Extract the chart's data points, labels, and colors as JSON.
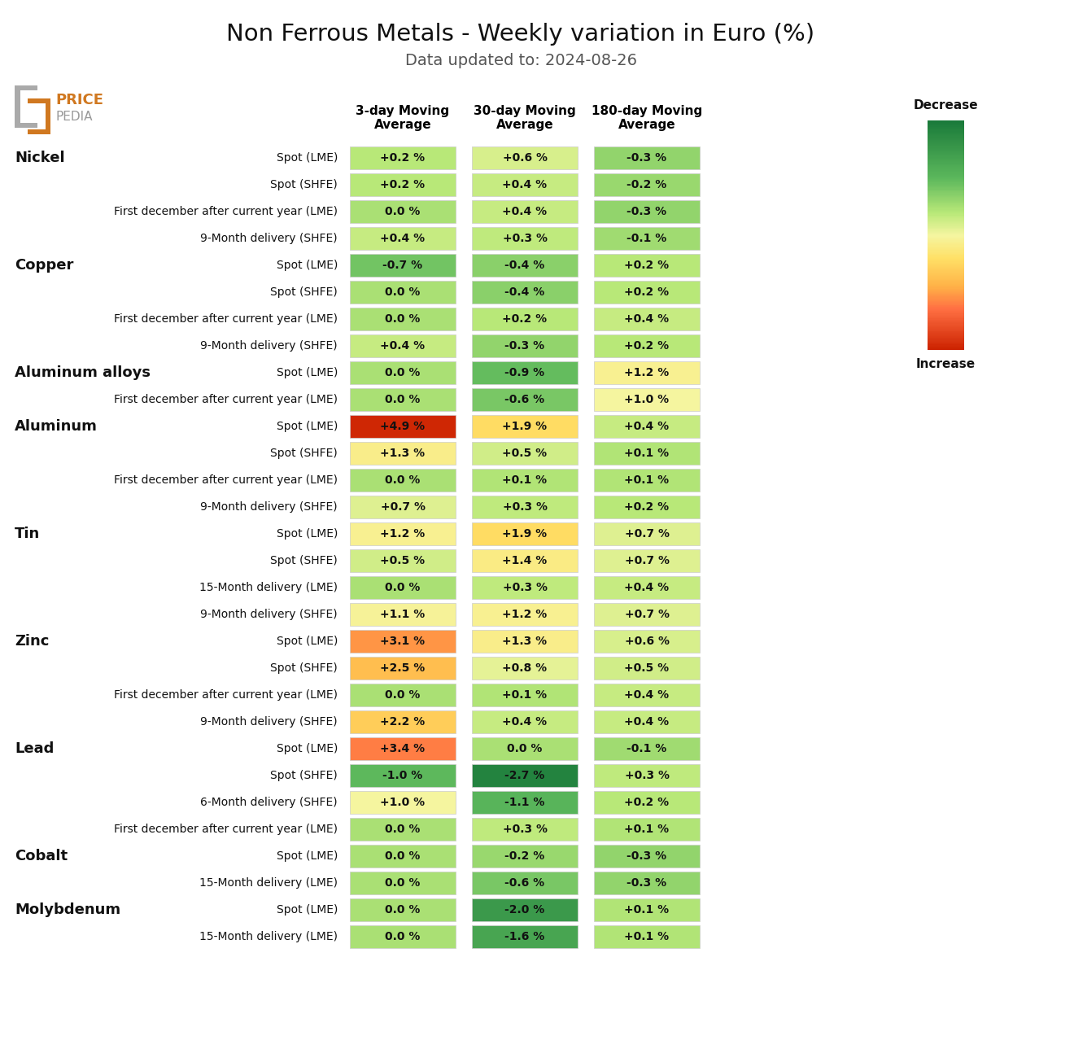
{
  "title": "Non Ferrous Metals - Weekly variation in Euro (%)",
  "subtitle": "Data updated to: 2024-08-26",
  "col_headers": [
    "3-day Moving\nAverage",
    "30-day Moving\nAverage",
    "180-day Moving\nAverage"
  ],
  "rows": [
    {
      "metal": "Nickel",
      "label": "Spot (LME)",
      "values": [
        0.2,
        0.6,
        -0.3
      ]
    },
    {
      "metal": "",
      "label": "Spot (SHFE)",
      "values": [
        0.2,
        0.4,
        -0.2
      ]
    },
    {
      "metal": "",
      "label": "First december after current year (LME)",
      "values": [
        0.0,
        0.4,
        -0.3
      ]
    },
    {
      "metal": "",
      "label": "9-Month delivery (SHFE)",
      "values": [
        0.4,
        0.3,
        -0.1
      ]
    },
    {
      "metal": "Copper",
      "label": "Spot (LME)",
      "values": [
        -0.7,
        -0.4,
        0.2
      ]
    },
    {
      "metal": "",
      "label": "Spot (SHFE)",
      "values": [
        0.0,
        -0.4,
        0.2
      ]
    },
    {
      "metal": "",
      "label": "First december after current year (LME)",
      "values": [
        0.0,
        0.2,
        0.4
      ]
    },
    {
      "metal": "",
      "label": "9-Month delivery (SHFE)",
      "values": [
        0.4,
        -0.3,
        0.2
      ]
    },
    {
      "metal": "Aluminum alloys",
      "label": "Spot (LME)",
      "values": [
        0.0,
        -0.9,
        1.2
      ]
    },
    {
      "metal": "",
      "label": "First december after current year (LME)",
      "values": [
        0.0,
        -0.6,
        1.0
      ]
    },
    {
      "metal": "Aluminum",
      "label": "Spot (LME)",
      "values": [
        4.9,
        1.9,
        0.4
      ]
    },
    {
      "metal": "",
      "label": "Spot (SHFE)",
      "values": [
        1.3,
        0.5,
        0.1
      ]
    },
    {
      "metal": "",
      "label": "First december after current year (LME)",
      "values": [
        0.0,
        0.1,
        0.1
      ]
    },
    {
      "metal": "",
      "label": "9-Month delivery (SHFE)",
      "values": [
        0.7,
        0.3,
        0.2
      ]
    },
    {
      "metal": "Tin",
      "label": "Spot (LME)",
      "values": [
        1.2,
        1.9,
        0.7
      ]
    },
    {
      "metal": "",
      "label": "Spot (SHFE)",
      "values": [
        0.5,
        1.4,
        0.7
      ]
    },
    {
      "metal": "",
      "label": "15-Month delivery (LME)",
      "values": [
        0.0,
        0.3,
        0.4
      ]
    },
    {
      "metal": "",
      "label": "9-Month delivery (SHFE)",
      "values": [
        1.1,
        1.2,
        0.7
      ]
    },
    {
      "metal": "Zinc",
      "label": "Spot (LME)",
      "values": [
        3.1,
        1.3,
        0.6
      ]
    },
    {
      "metal": "",
      "label": "Spot (SHFE)",
      "values": [
        2.5,
        0.8,
        0.5
      ]
    },
    {
      "metal": "",
      "label": "First december after current year (LME)",
      "values": [
        0.0,
        0.1,
        0.4
      ]
    },
    {
      "metal": "",
      "label": "9-Month delivery (SHFE)",
      "values": [
        2.2,
        0.4,
        0.4
      ]
    },
    {
      "metal": "Lead",
      "label": "Spot (LME)",
      "values": [
        3.4,
        0.0,
        -0.1
      ]
    },
    {
      "metal": "",
      "label": "Spot (SHFE)",
      "values": [
        -1.0,
        -2.7,
        0.3
      ]
    },
    {
      "metal": "",
      "label": "6-Month delivery (SHFE)",
      "values": [
        1.0,
        -1.1,
        0.2
      ]
    },
    {
      "metal": "",
      "label": "First december after current year (LME)",
      "values": [
        0.0,
        0.3,
        0.1
      ]
    },
    {
      "metal": "Cobalt",
      "label": "Spot (LME)",
      "values": [
        0.0,
        -0.2,
        -0.3
      ]
    },
    {
      "metal": "",
      "label": "15-Month delivery (LME)",
      "values": [
        0.0,
        -0.6,
        -0.3
      ]
    },
    {
      "metal": "Molybdenum",
      "label": "Spot (LME)",
      "values": [
        0.0,
        -2.0,
        0.1
      ]
    },
    {
      "metal": "",
      "label": "15-Month delivery (LME)",
      "values": [
        0.0,
        -1.6,
        0.1
      ]
    }
  ],
  "colorbar_label_top": "Decrease",
  "colorbar_label_bottom": "Increase",
  "background_color": "#ffffff",
  "vmin": -3.0,
  "vmax": 5.0,
  "cmap_colors": [
    [
      0.0,
      "#1a7a3a"
    ],
    [
      0.25,
      "#5cb85c"
    ],
    [
      0.4,
      "#b8e878"
    ],
    [
      0.5,
      "#f5f5a0"
    ],
    [
      0.6,
      "#ffe066"
    ],
    [
      0.72,
      "#ffb347"
    ],
    [
      0.82,
      "#ff7043"
    ],
    [
      1.0,
      "#cc2200"
    ]
  ]
}
